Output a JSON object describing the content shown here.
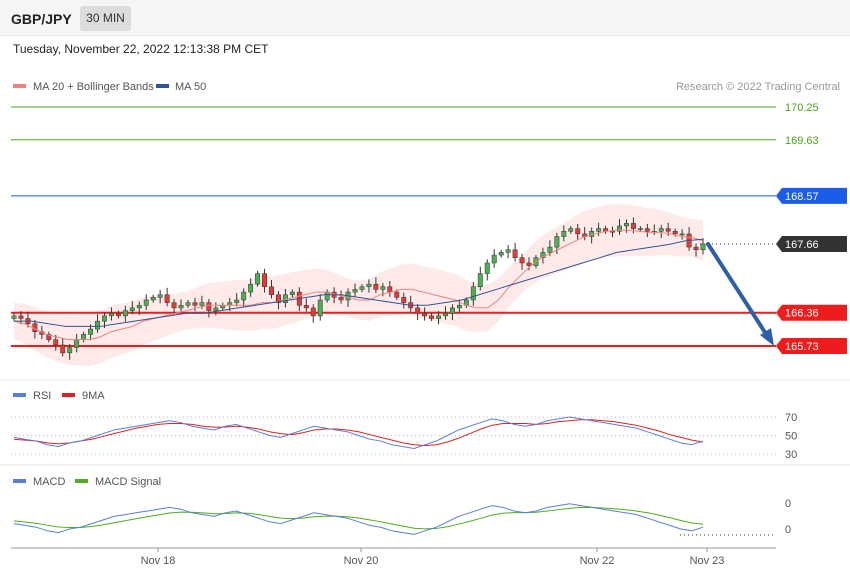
{
  "header": {
    "symbol": "GBP/JPY",
    "timeframe": "30 MIN",
    "datetime": "Tuesday, November 22, 2022 12:13:38 PM CET"
  },
  "main_legend": {
    "ma20_label": "MA 20 + Bollinger Bands",
    "ma20_color": "#f08080",
    "ma50_label": "MA 50",
    "ma50_color": "#2f5496",
    "credit": "Research © 2022 Trading Central"
  },
  "rsi_legend": {
    "rsi_label": "RSI",
    "rsi_color": "#5b7fd6",
    "ma_label": "9MA",
    "ma_color": "#dd2222"
  },
  "macd_legend": {
    "macd_label": "MACD",
    "macd_color": "#5b7fd6",
    "signal_label": "MACD Signal",
    "signal_color": "#4caf1a"
  },
  "levels": [
    {
      "value": 170.25,
      "label": "170.25",
      "kind": "target",
      "color": "#4ca61a"
    },
    {
      "value": 169.63,
      "label": "169.63",
      "kind": "target",
      "color": "#4ca61a"
    },
    {
      "value": 168.57,
      "label": "168.57",
      "kind": "pivot",
      "color": "#1a5de8"
    },
    {
      "value": 167.66,
      "label": "167.66",
      "kind": "last",
      "color": "#333333"
    },
    {
      "value": 166.36,
      "label": "166.36",
      "kind": "support",
      "color": "#ee1c1c"
    },
    {
      "value": 165.73,
      "label": "165.73",
      "kind": "support",
      "color": "#ee1c1c"
    }
  ],
  "rsi_ticks": [
    "70",
    "50",
    "30"
  ],
  "macd_ticks": [
    "0",
    "0"
  ],
  "x_labels": [
    "Nov 18",
    "Nov 20",
    "Nov 22",
    "Nov 23"
  ],
  "chart_data": {
    "type": "candlestick",
    "ylim": [
      165.5,
      170.6
    ],
    "closes": [
      166.3,
      166.25,
      166.15,
      166.0,
      165.95,
      165.85,
      165.75,
      165.6,
      165.7,
      165.85,
      165.95,
      166.05,
      166.2,
      166.3,
      166.35,
      166.3,
      166.4,
      166.45,
      166.5,
      166.6,
      166.65,
      166.7,
      166.55,
      166.45,
      166.5,
      166.55,
      166.5,
      166.55,
      166.4,
      166.45,
      166.5,
      166.55,
      166.6,
      166.75,
      166.9,
      167.1,
      166.85,
      166.7,
      166.55,
      166.7,
      166.75,
      166.5,
      166.45,
      166.3,
      166.6,
      166.75,
      166.65,
      166.6,
      166.75,
      166.8,
      166.85,
      166.9,
      166.8,
      166.85,
      166.75,
      166.65,
      166.55,
      166.45,
      166.35,
      166.3,
      166.25,
      166.3,
      166.35,
      166.45,
      166.5,
      166.6,
      166.85,
      167.1,
      167.3,
      167.45,
      167.5,
      167.55,
      167.4,
      167.3,
      167.25,
      167.4,
      167.5,
      167.6,
      167.8,
      167.9,
      167.95,
      167.85,
      167.8,
      167.9,
      167.95,
      167.9,
      167.9,
      168.0,
      168.05,
      167.95,
      167.95,
      167.9,
      167.9,
      167.95,
      167.9,
      167.85,
      167.85,
      167.6,
      167.55,
      167.66
    ],
    "ma20": [
      166.2,
      166.15,
      166.05,
      165.95,
      165.9,
      165.85,
      165.85,
      165.85,
      165.9,
      166.0,
      166.05,
      166.1,
      166.2,
      166.25,
      166.3,
      166.35,
      166.4,
      166.45,
      166.5,
      166.5,
      166.5,
      166.5,
      166.5,
      166.55,
      166.55,
      166.6,
      166.65,
      166.7,
      166.75,
      166.75,
      166.7,
      166.65,
      166.6,
      166.6,
      166.7,
      166.75,
      166.8,
      166.8,
      166.75,
      166.7,
      166.65,
      166.6,
      166.5,
      166.45,
      166.45,
      166.6,
      166.85,
      167.05,
      167.25,
      167.4,
      167.5,
      167.6,
      167.7,
      167.8,
      167.85,
      167.9,
      167.92,
      167.92,
      167.9,
      167.88,
      167.88,
      167.85,
      167.8,
      167.78,
      167.72
    ],
    "ma50": [
      166.2,
      166.2,
      166.15,
      166.1,
      166.1,
      166.1,
      166.15,
      166.2,
      166.25,
      166.3,
      166.35,
      166.35,
      166.4,
      166.45,
      166.5,
      166.55,
      166.6,
      166.65,
      166.7,
      166.7,
      166.65,
      166.6,
      166.55,
      166.5,
      166.5,
      166.55,
      166.6,
      166.7,
      166.8,
      166.9,
      167.0,
      167.1,
      167.2,
      167.3,
      167.4,
      167.5,
      167.55,
      167.6,
      167.65,
      167.72,
      167.75
    ],
    "rsi": [
      48,
      46,
      44,
      40,
      38,
      42,
      44,
      48,
      52,
      56,
      58,
      60,
      62,
      64,
      66,
      64,
      60,
      58,
      56,
      60,
      62,
      58,
      54,
      50,
      48,
      52,
      56,
      60,
      58,
      56,
      54,
      50,
      46,
      44,
      40,
      38,
      36,
      40,
      44,
      50,
      56,
      60,
      64,
      68,
      66,
      62,
      60,
      62,
      66,
      68,
      70,
      68,
      66,
      64,
      62,
      60,
      58,
      54,
      50,
      46,
      42,
      40,
      44
    ],
    "rsi_ma": [
      46,
      45,
      44,
      42,
      41,
      42,
      44,
      46,
      49,
      52,
      55,
      58,
      60,
      62,
      63,
      63,
      62,
      60,
      59,
      59,
      60,
      59,
      57,
      54,
      52,
      51,
      53,
      56,
      57,
      57,
      56,
      54,
      51,
      48,
      45,
      42,
      40,
      39,
      40,
      43,
      47,
      52,
      57,
      61,
      63,
      63,
      63,
      62,
      63,
      65,
      66,
      67,
      67,
      66,
      65,
      63,
      61,
      58,
      55,
      51,
      48,
      45,
      43
    ]
  }
}
